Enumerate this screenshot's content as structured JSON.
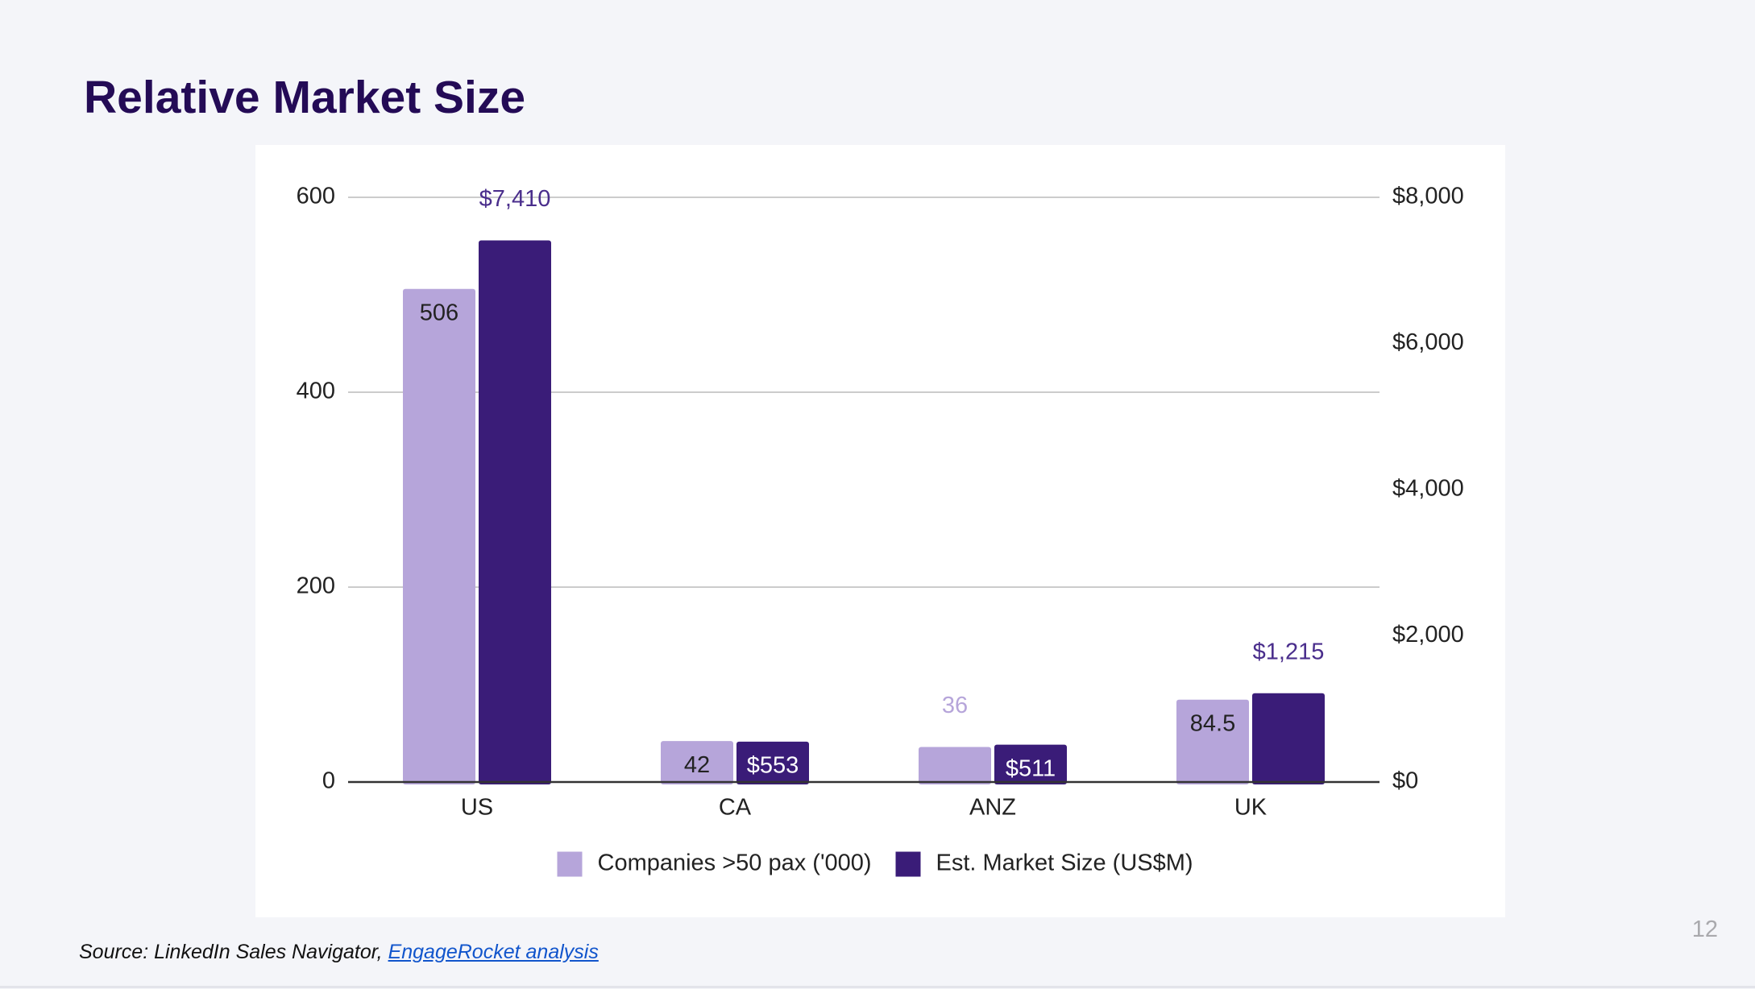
{
  "slide": {
    "title": "Relative Market Size",
    "page_number": "12"
  },
  "source": {
    "prefix": "Source: LinkedIn Sales Navigator, ",
    "link_text": "EngageRocket analysis"
  },
  "colors": {
    "background": "#f4f5f9",
    "title": "#240b56",
    "series_light": "#b6a5da",
    "series_dark": "#3a1c78",
    "label_on_dark": "#ffffff",
    "label_dark_outside": "#4a2e8c",
    "label_light_outside": "#b6a5da",
    "gridline": "#cccccc",
    "axis": "#333333",
    "link": "#1155cc"
  },
  "chart_data": {
    "type": "bar",
    "title": "",
    "categories": [
      "US",
      "CA",
      "ANZ",
      "UK"
    ],
    "series": [
      {
        "name": "Companies >50 pax ('000)",
        "axis": "left",
        "values": [
          506,
          42,
          36,
          84.5
        ],
        "labels": [
          "506",
          "42",
          "36",
          "84.5"
        ],
        "label_placement": [
          "inside",
          "inside",
          "outside",
          "inside"
        ]
      },
      {
        "name": "Est. Market Size (US$M)",
        "axis": "right",
        "values": [
          7410,
          553,
          511,
          1215
        ],
        "labels": [
          "$7,410",
          "$553",
          "$511",
          "$1,215"
        ],
        "label_placement": [
          "outside",
          "inside",
          "inside",
          "outside"
        ]
      }
    ],
    "left_axis": {
      "ylim": [
        0,
        600
      ],
      "ticks": [
        0,
        200,
        400,
        600
      ],
      "tick_labels": [
        "0",
        "200",
        "400",
        "600"
      ]
    },
    "right_axis": {
      "ylim": [
        0,
        8000
      ],
      "ticks": [
        0,
        2000,
        4000,
        6000,
        8000
      ],
      "tick_labels": [
        "$0",
        "$2,000",
        "$4,000",
        "$6,000",
        "$8,000"
      ]
    },
    "grid": true,
    "legend": "bottom-center"
  }
}
